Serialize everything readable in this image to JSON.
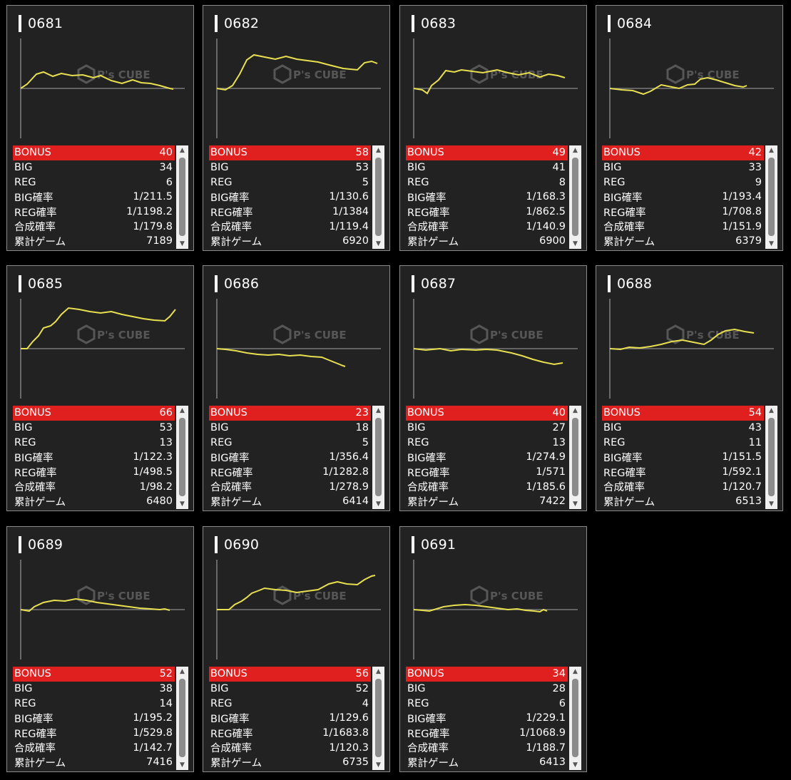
{
  "labels": {
    "bonus": "BONUS",
    "big": "BIG",
    "reg": "REG",
    "big_rate": "BIG確率",
    "reg_rate": "REG確率",
    "total_rate": "合成確率",
    "total_games": "累計ゲーム"
  },
  "watermark": "P's CUBE",
  "colors": {
    "line": "#e8e050",
    "bonus_bg": "#e01f1f",
    "card_bg": "#222222"
  },
  "machines": [
    {
      "id": "0681",
      "bonus": "40",
      "big": "34",
      "reg": "6",
      "big_rate": "1/211.5",
      "reg_rate": "1/1198.2",
      "total_rate": "1/179.8",
      "games": "7189"
    },
    {
      "id": "0682",
      "bonus": "58",
      "big": "53",
      "reg": "5",
      "big_rate": "1/130.6",
      "reg_rate": "1/1384",
      "total_rate": "1/119.4",
      "games": "6920"
    },
    {
      "id": "0683",
      "bonus": "49",
      "big": "41",
      "reg": "8",
      "big_rate": "1/168.3",
      "reg_rate": "1/862.5",
      "total_rate": "1/140.9",
      "games": "6900"
    },
    {
      "id": "0684",
      "bonus": "42",
      "big": "33",
      "reg": "9",
      "big_rate": "1/193.4",
      "reg_rate": "1/708.8",
      "total_rate": "1/151.9",
      "games": "6379"
    },
    {
      "id": "0685",
      "bonus": "66",
      "big": "53",
      "reg": "13",
      "big_rate": "1/122.3",
      "reg_rate": "1/498.5",
      "total_rate": "1/98.2",
      "games": "6480"
    },
    {
      "id": "0686",
      "bonus": "23",
      "big": "18",
      "reg": "5",
      "big_rate": "1/356.4",
      "reg_rate": "1/1282.8",
      "total_rate": "1/278.9",
      "games": "6414"
    },
    {
      "id": "0687",
      "bonus": "40",
      "big": "27",
      "reg": "13",
      "big_rate": "1/274.9",
      "reg_rate": "1/571",
      "total_rate": "1/185.6",
      "games": "7422"
    },
    {
      "id": "0688",
      "bonus": "54",
      "big": "43",
      "reg": "11",
      "big_rate": "1/151.5",
      "reg_rate": "1/592.1",
      "total_rate": "1/120.7",
      "games": "6513"
    },
    {
      "id": "0689",
      "bonus": "52",
      "big": "38",
      "reg": "14",
      "big_rate": "1/195.2",
      "reg_rate": "1/529.8",
      "total_rate": "1/142.7",
      "games": "7416"
    },
    {
      "id": "0690",
      "bonus": "56",
      "big": "52",
      "reg": "4",
      "big_rate": "1/129.6",
      "reg_rate": "1/1683.8",
      "total_rate": "1/120.3",
      "games": "6735"
    },
    {
      "id": "0691",
      "bonus": "34",
      "big": "28",
      "reg": "6",
      "big_rate": "1/229.1",
      "reg_rate": "1/1068.9",
      "total_rate": "1/188.7",
      "games": "6413"
    }
  ]
}
